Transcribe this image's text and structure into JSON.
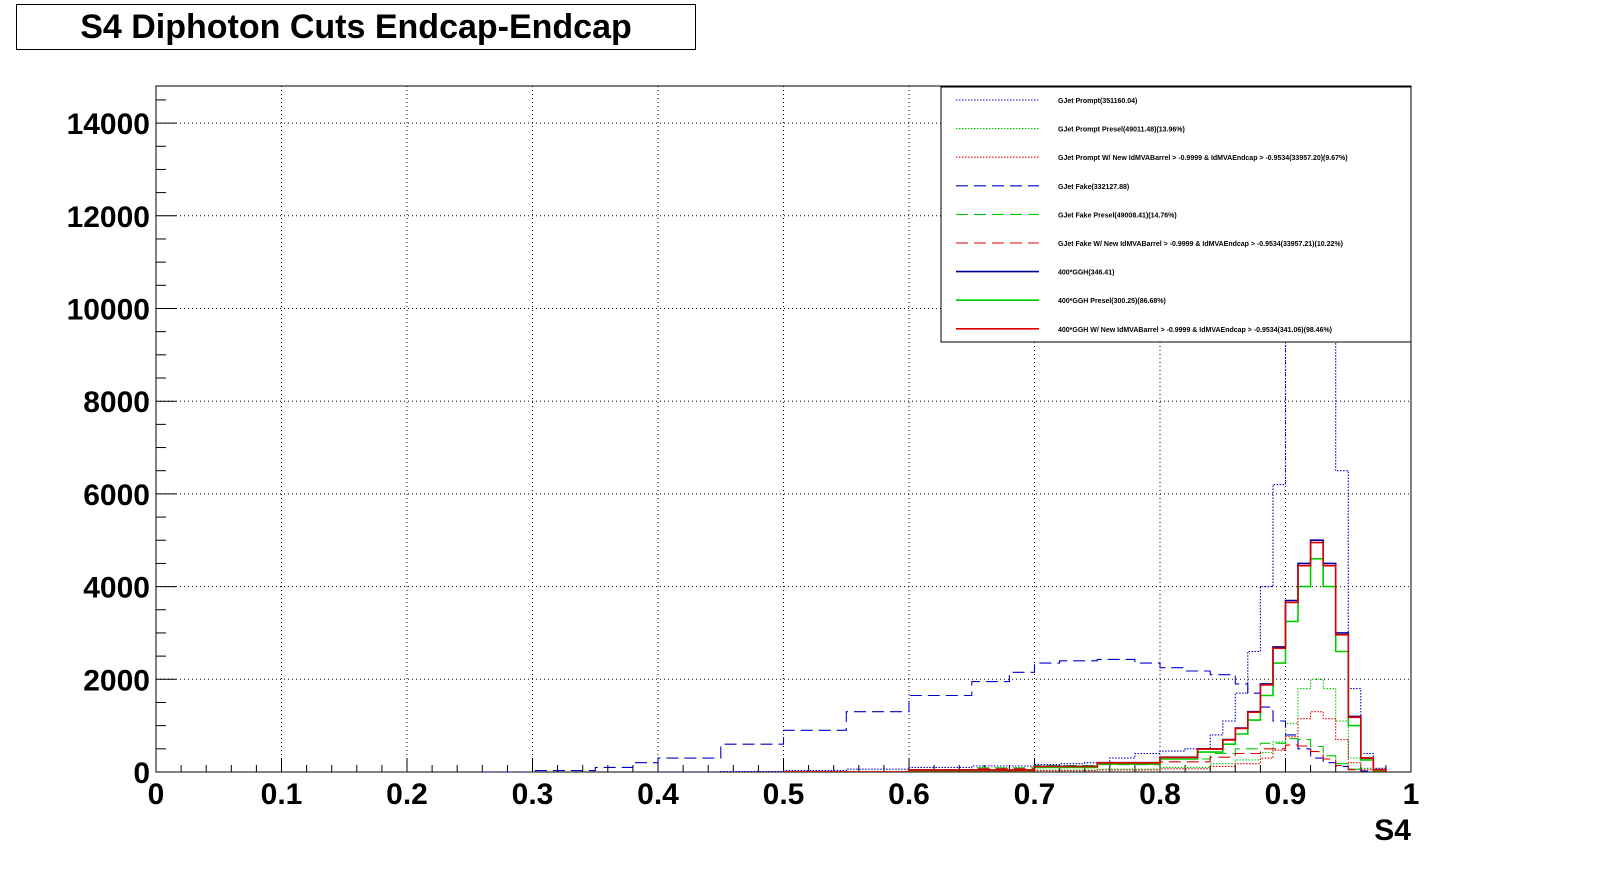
{
  "title": "S4 Diphoton Cuts Endcap-Endcap",
  "chart_data": {
    "type": "line",
    "title": "S4 Diphoton Cuts Endcap-Endcap",
    "xlabel": "S4",
    "ylabel": "",
    "xlim": [
      0,
      1
    ],
    "ylim": [
      0,
      14800
    ],
    "x_ticks": [
      "0",
      "0.1",
      "0.2",
      "0.3",
      "0.4",
      "0.5",
      "0.6",
      "0.7",
      "0.8",
      "0.9",
      "1"
    ],
    "y_ticks": [
      "0",
      "2000",
      "4000",
      "6000",
      "8000",
      "10000",
      "12000",
      "14000"
    ],
    "grid": true,
    "legend_position": "top-right",
    "series": [
      {
        "name": "GJet Prompt(351160.04)",
        "color": "#0000cc",
        "line": "dotted",
        "x": [
          0.4,
          0.45,
          0.5,
          0.55,
          0.6,
          0.65,
          0.7,
          0.72,
          0.74,
          0.76,
          0.78,
          0.8,
          0.82,
          0.84,
          0.85,
          0.86,
          0.87,
          0.88,
          0.89,
          0.9,
          0.91,
          0.92,
          0.93,
          0.94,
          0.95,
          0.96,
          0.97,
          0.98
        ],
        "y": [
          0,
          10,
          30,
          60,
          100,
          130,
          160,
          180,
          200,
          300,
          400,
          450,
          500,
          800,
          1100,
          1700,
          2600,
          4000,
          6200,
          9500,
          13000,
          14500,
          13000,
          6500,
          1800,
          400,
          80,
          0
        ]
      },
      {
        "name": "GJet Prompt Presel(49011.48)(13.96%)",
        "color": "#00cc00",
        "line": "dotted",
        "x": [
          0.5,
          0.6,
          0.7,
          0.75,
          0.8,
          0.84,
          0.86,
          0.88,
          0.89,
          0.9,
          0.91,
          0.92,
          0.93,
          0.94,
          0.95,
          0.96,
          0.97,
          0.98
        ],
        "y": [
          0,
          20,
          40,
          60,
          100,
          180,
          260,
          420,
          650,
          1050,
          1800,
          2000,
          1800,
          1100,
          300,
          80,
          20,
          0
        ]
      },
      {
        "name": "GJet Prompt W/ New IdMVABarrel > -0.9999 & IdMVAEndcap > -0.9534(33957.20)(9.67%)",
        "color": "#dd0000",
        "line": "dotted",
        "x": [
          0.5,
          0.6,
          0.7,
          0.75,
          0.8,
          0.84,
          0.86,
          0.88,
          0.89,
          0.9,
          0.91,
          0.92,
          0.93,
          0.94,
          0.95,
          0.96,
          0.97,
          0.98
        ],
        "y": [
          0,
          15,
          30,
          45,
          70,
          120,
          180,
          300,
          470,
          760,
          1150,
          1300,
          1150,
          700,
          200,
          50,
          10,
          0
        ]
      },
      {
        "name": "GJet Fake(332127.88)",
        "color": "#0000cc",
        "line": "dashed",
        "x": [
          0.26,
          0.3,
          0.35,
          0.38,
          0.4,
          0.45,
          0.5,
          0.55,
          0.6,
          0.65,
          0.68,
          0.7,
          0.72,
          0.75,
          0.78,
          0.8,
          0.82,
          0.84,
          0.86,
          0.87,
          0.88,
          0.89,
          0.9,
          0.91,
          0.92,
          0.93,
          0.94,
          0.95,
          0.96,
          0.97
        ],
        "y": [
          0,
          30,
          100,
          200,
          300,
          600,
          900,
          1300,
          1650,
          1950,
          2150,
          2350,
          2400,
          2430,
          2350,
          2250,
          2180,
          2100,
          1900,
          1700,
          1400,
          1100,
          800,
          500,
          300,
          200,
          120,
          60,
          20,
          0
        ]
      },
      {
        "name": "GJet Fake Presel(49008.41)(14.76%)",
        "color": "#00cc00",
        "line": "dashed",
        "x": [
          0.6,
          0.65,
          0.7,
          0.75,
          0.8,
          0.84,
          0.86,
          0.88,
          0.9,
          0.91,
          0.92,
          0.93,
          0.94,
          0.95,
          0.96
        ],
        "y": [
          50,
          90,
          140,
          200,
          280,
          400,
          500,
          620,
          720,
          700,
          550,
          350,
          180,
          60,
          0
        ]
      },
      {
        "name": "GJet Fake W/ New IdMVABarrel > -0.9999 & IdMVAEndcap > -0.9534(33957.21)(10.22%)",
        "color": "#dd0000",
        "line": "dashed",
        "x": [
          0.6,
          0.65,
          0.7,
          0.75,
          0.8,
          0.84,
          0.86,
          0.88,
          0.9,
          0.91,
          0.92,
          0.93,
          0.94,
          0.95,
          0.96
        ],
        "y": [
          40,
          70,
          110,
          160,
          220,
          320,
          400,
          500,
          580,
          560,
          440,
          280,
          140,
          50,
          0
        ]
      },
      {
        "name": "400*GGH(346.41)",
        "color": "#000099",
        "line": "solid",
        "x": [
          0.5,
          0.6,
          0.7,
          0.75,
          0.8,
          0.83,
          0.85,
          0.86,
          0.87,
          0.88,
          0.89,
          0.9,
          0.91,
          0.92,
          0.93,
          0.94,
          0.95,
          0.96,
          0.97,
          0.98
        ],
        "y": [
          0,
          40,
          120,
          200,
          320,
          500,
          700,
          950,
          1300,
          1900,
          2700,
          3700,
          4500,
          5000,
          4500,
          3000,
          1200,
          300,
          50,
          0
        ]
      },
      {
        "name": "400*GGH Presel(300.25)(86.68%)",
        "color": "#00cc00",
        "line": "solid",
        "x": [
          0.5,
          0.6,
          0.7,
          0.75,
          0.8,
          0.83,
          0.85,
          0.86,
          0.87,
          0.88,
          0.89,
          0.9,
          0.91,
          0.92,
          0.93,
          0.94,
          0.95,
          0.96,
          0.97,
          0.98
        ],
        "y": [
          0,
          35,
          100,
          170,
          280,
          430,
          600,
          820,
          1120,
          1650,
          2350,
          3250,
          4000,
          4600,
          4000,
          2600,
          1000,
          260,
          40,
          0
        ]
      },
      {
        "name": "400*GGH W/ New IdMVABarrel > -0.9999 & IdMVAEndcap > -0.9534(341.06)(98.46%)",
        "color": "#dd0000",
        "line": "solid",
        "x": [
          0.5,
          0.6,
          0.7,
          0.75,
          0.8,
          0.83,
          0.85,
          0.86,
          0.87,
          0.88,
          0.89,
          0.9,
          0.91,
          0.92,
          0.93,
          0.94,
          0.95,
          0.96,
          0.97,
          0.98
        ],
        "y": [
          0,
          40,
          118,
          198,
          316,
          495,
          692,
          940,
          1290,
          1880,
          2670,
          3660,
          4450,
          4950,
          4450,
          2960,
          1180,
          300,
          50,
          0
        ]
      }
    ]
  }
}
